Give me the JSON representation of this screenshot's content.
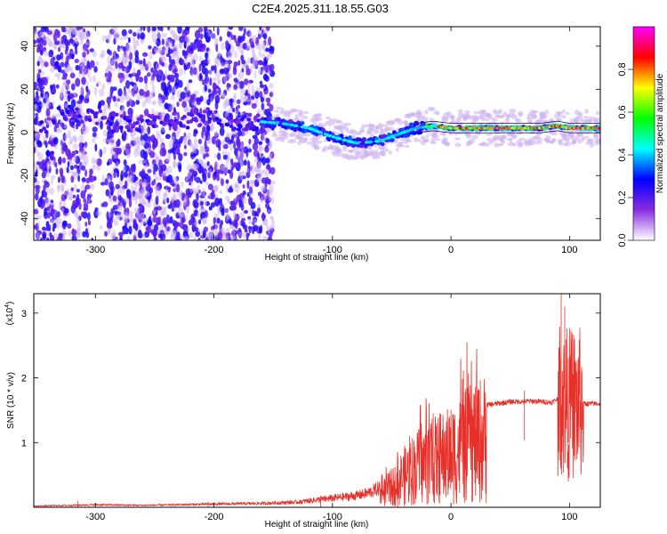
{
  "title": "C2E4.2025.311.18.55.G03",
  "chart_data": [
    {
      "type": "heatmap",
      "xlabel": "Height of straight line (km)",
      "ylabel": "Frequency (Hz)",
      "xlim": [
        -352,
        126
      ],
      "ylim": [
        -50,
        49
      ],
      "xticks": [
        -300,
        -200,
        -100,
        0,
        100
      ],
      "yticks": [
        -40,
        -20,
        0,
        20,
        40
      ],
      "colorbar": {
        "label": "Normalized spectral amplitude",
        "ticks": [
          "0.0",
          "0.2",
          "0.4",
          "0.6",
          "0.8"
        ],
        "tick_values": [
          0,
          0.2,
          0.4,
          0.6,
          0.8
        ],
        "range": [
          0,
          1
        ],
        "colors": [
          "#ffffff",
          "#8a2be2",
          "#0000ff",
          "#00ffff",
          "#00ff00",
          "#ffff00",
          "#ff0000",
          "#ff00ff"
        ]
      },
      "ridge_path": [
        [
          -340,
          8
        ],
        [
          -320,
          9
        ],
        [
          -300,
          7
        ],
        [
          -280,
          5
        ],
        [
          -260,
          4
        ],
        [
          -240,
          6
        ],
        [
          -220,
          5
        ],
        [
          -205,
          8
        ],
        [
          -180,
          4
        ],
        [
          -160,
          5
        ],
        [
          -140,
          4
        ],
        [
          -120,
          2
        ],
        [
          -100,
          -2
        ],
        [
          -80,
          -5
        ],
        [
          -60,
          -4
        ],
        [
          -45,
          -1
        ],
        [
          -30,
          2
        ],
        [
          -15,
          3
        ],
        [
          0,
          2
        ],
        [
          25,
          2
        ],
        [
          50,
          2
        ],
        [
          75,
          2
        ],
        [
          90,
          3
        ],
        [
          100,
          2
        ],
        [
          126,
          2
        ]
      ]
    },
    {
      "type": "line",
      "xlabel": "Height of straight line (km)",
      "ylabel": "SNR (10 * v/v)",
      "scale_label": "(x10",
      "scale_exp": "4",
      "scale_close": ")",
      "xlim": [
        -352,
        126
      ],
      "ylim": [
        0,
        3.3
      ],
      "xticks": [
        -300,
        -200,
        -100,
        0,
        100
      ],
      "yticks": [
        1,
        2,
        3
      ],
      "color": "#e8302a",
      "envelope": [
        [
          -352,
          0.02
        ],
        [
          -320,
          0.03
        ],
        [
          -300,
          0.04
        ],
        [
          -260,
          0.03
        ],
        [
          -200,
          0.05
        ],
        [
          -160,
          0.06
        ],
        [
          -130,
          0.08
        ],
        [
          -110,
          0.12
        ],
        [
          -95,
          0.15
        ],
        [
          -80,
          0.18
        ],
        [
          -70,
          0.22
        ],
        [
          -60,
          0.3
        ],
        [
          -50,
          0.45
        ],
        [
          -40,
          0.7
        ],
        [
          -30,
          0.9
        ],
        [
          -20,
          1.0
        ],
        [
          -10,
          1.1
        ],
        [
          0,
          1.2
        ],
        [
          10,
          1.35
        ],
        [
          20,
          1.5
        ],
        [
          30,
          1.58
        ],
        [
          50,
          1.63
        ],
        [
          70,
          1.64
        ],
        [
          85,
          1.62
        ],
        [
          92,
          1.7
        ],
        [
          95,
          1.6
        ],
        [
          100,
          1.6
        ],
        [
          110,
          1.6
        ],
        [
          126,
          1.6
        ]
      ],
      "spikes": [
        [
          -315,
          0.1
        ],
        [
          -205,
          0.09
        ],
        [
          -110,
          0.18
        ],
        [
          -45,
          0.85
        ],
        [
          -35,
          1.1
        ],
        [
          -25,
          1.3
        ],
        [
          -15,
          1.45
        ],
        [
          -10,
          0.8
        ],
        [
          12,
          1.5
        ],
        [
          62,
          1.8
        ],
        [
          93,
          3.3
        ],
        [
          96,
          3.1
        ],
        [
          99,
          2.3
        ],
        [
          104,
          2.5
        ],
        [
          110,
          2.1
        ]
      ]
    }
  ]
}
